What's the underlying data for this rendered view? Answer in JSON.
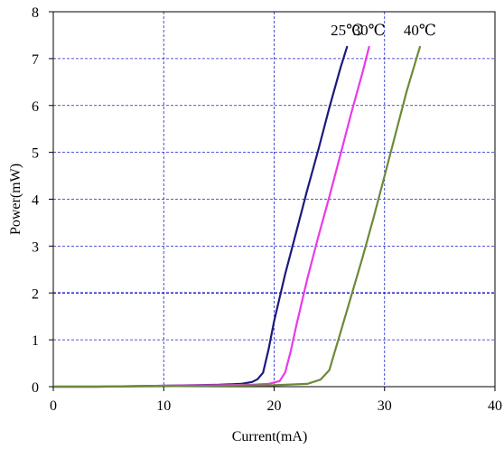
{
  "chart_data": {
    "type": "line",
    "title": "",
    "xlabel": "Current(mA)",
    "ylabel": "Power(mW)",
    "xlim": [
      0,
      40
    ],
    "ylim": [
      0,
      8
    ],
    "x_ticks": [
      "0",
      "10",
      "20",
      "30",
      "40"
    ],
    "y_ticks": [
      "0",
      "1",
      "2",
      "3",
      "4",
      "5",
      "6",
      "7",
      "8"
    ],
    "grid": true,
    "series": [
      {
        "name": "25℃",
        "color": "#1a1a7a",
        "x": [
          0,
          4,
          10,
          15,
          17,
          18,
          18.5,
          19,
          19.5,
          20,
          21,
          22,
          23,
          24,
          25,
          26,
          26.6
        ],
        "y": [
          0,
          0,
          0.02,
          0.04,
          0.06,
          0.1,
          0.16,
          0.3,
          0.8,
          1.4,
          2.4,
          3.3,
          4.2,
          5.05,
          5.95,
          6.8,
          7.25
        ]
      },
      {
        "name": "30℃",
        "color": "#e83ae8",
        "x": [
          0,
          4,
          10,
          15,
          18,
          19.5,
          20.5,
          21,
          21.5,
          22,
          23,
          24,
          25,
          26,
          27,
          28,
          28.6
        ],
        "y": [
          0,
          0,
          0.02,
          0.03,
          0.04,
          0.06,
          0.12,
          0.3,
          0.75,
          1.3,
          2.3,
          3.2,
          4.05,
          4.95,
          5.85,
          6.7,
          7.25
        ]
      },
      {
        "name": "40℃",
        "color": "#6b8a3a",
        "x": [
          0,
          4,
          10,
          15,
          20,
          23,
          24.2,
          25,
          25.5,
          26,
          27,
          28,
          29,
          30,
          31,
          32,
          33.2
        ],
        "y": [
          0,
          0,
          0.01,
          0.02,
          0.03,
          0.06,
          0.15,
          0.35,
          0.75,
          1.15,
          1.95,
          2.75,
          3.6,
          4.5,
          5.4,
          6.3,
          7.25
        ]
      }
    ]
  }
}
